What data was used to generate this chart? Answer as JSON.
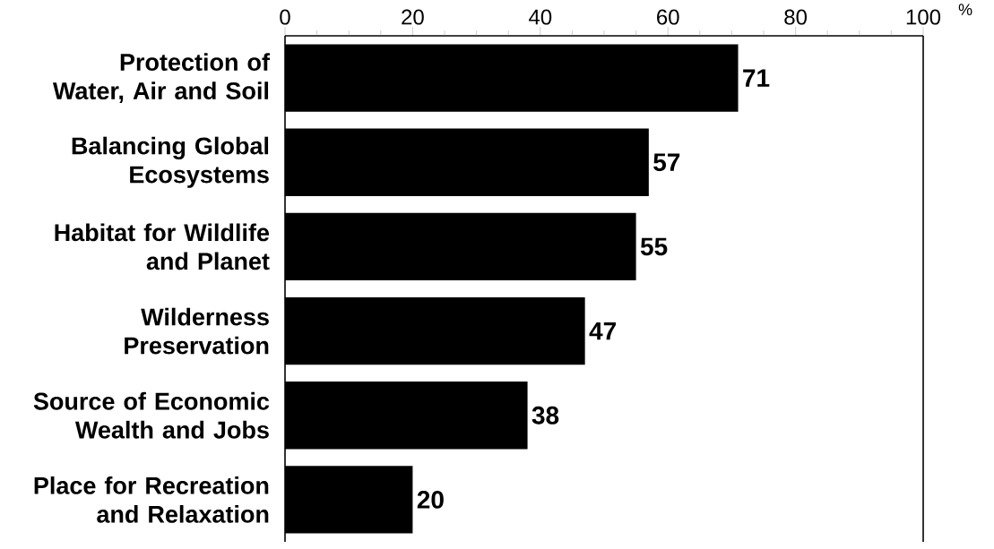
{
  "chart_data": {
    "type": "bar",
    "orientation": "horizontal",
    "xlabel": "%",
    "categories": [
      "Protection of Water, Air and Soil",
      "Balancing Global Ecosystems",
      "Habitat for Wildlife and Planet",
      "Wilderness Preservation",
      "Source of Economic Wealth and Jobs",
      "Place for Recreation and Relaxation"
    ],
    "values": [
      71,
      57,
      55,
      47,
      38,
      20
    ],
    "color": "#000000",
    "data_labels": true,
    "xlim": [
      0,
      100
    ],
    "xticks": [
      0,
      {
        "value": 5,
        "label": null
      },
      {
        "value": 10,
        "label": null
      },
      {
        "value": 15,
        "label": null
      },
      20,
      {
        "value": 25,
        "label": null
      },
      {
        "value": 30,
        "label": null
      },
      {
        "value": 35,
        "label": null
      },
      40,
      {
        "value": 45,
        "label": null
      },
      {
        "value": 50,
        "label": null
      },
      {
        "value": 55,
        "label": null
      },
      60,
      {
        "value": 65,
        "label": null
      },
      {
        "value": 70,
        "label": null
      },
      {
        "value": 75,
        "label": null
      },
      80,
      {
        "value": 85,
        "label": null
      },
      {
        "value": 90,
        "label": null
      },
      {
        "value": 95,
        "label": null
      },
      100
    ],
    "grid": false
  }
}
